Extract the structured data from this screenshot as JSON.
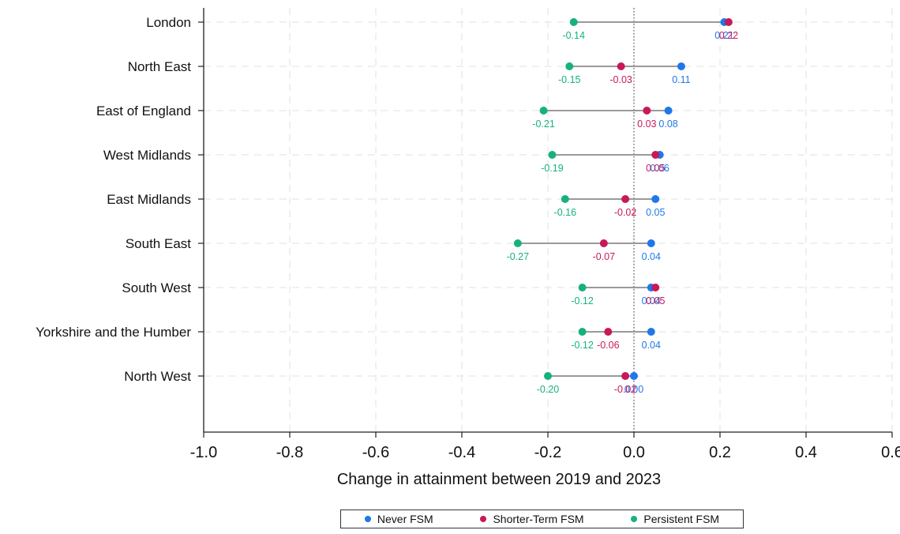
{
  "chart_data": {
    "type": "dumbbell",
    "xlabel": "Change in attainment between 2019 and 2023",
    "xlim": [
      -1.0,
      0.6
    ],
    "xticks": [
      -1.0,
      -0.8,
      -0.6,
      -0.4,
      -0.2,
      0.0,
      0.2,
      0.4,
      0.6
    ],
    "xtick_labels": [
      "-1.0",
      "-0.8",
      "-0.6",
      "-0.4",
      "-0.2",
      "0.0",
      "0.2",
      "0.4",
      "0.6"
    ],
    "reference_line": 0.0,
    "grid": true,
    "legend_position": "bottom",
    "categories": [
      "London",
      "North East",
      "East of England",
      "West Midlands",
      "East Midlands",
      "South East",
      "South West",
      "Yorkshire and the Humber",
      "North West"
    ],
    "series": [
      {
        "name": "Never FSM",
        "color": "#1f78e8",
        "values": [
          0.21,
          0.11,
          0.08,
          0.06,
          0.05,
          0.04,
          0.04,
          0.04,
          0.0
        ],
        "labels": [
          "0.21",
          "0.11",
          "0.08",
          "0.06",
          "0.05",
          "0.04",
          "0.04",
          "0.04",
          "0.00"
        ]
      },
      {
        "name": "Shorter-Term FSM",
        "color": "#c8185a",
        "values": [
          0.22,
          -0.03,
          0.03,
          0.05,
          -0.02,
          -0.07,
          0.05,
          -0.06,
          -0.02
        ],
        "labels": [
          "0.22",
          "-0.03",
          "0.03",
          "0.05",
          "-0.02",
          "-0.07",
          "0.05",
          "-0.06",
          "-0.02"
        ]
      },
      {
        "name": "Persistent FSM",
        "color": "#17b27a",
        "values": [
          -0.14,
          -0.15,
          -0.21,
          -0.19,
          -0.16,
          -0.27,
          -0.12,
          -0.12,
          -0.2
        ],
        "labels": [
          "-0.14",
          "-0.15",
          "-0.21",
          "-0.19",
          "-0.16",
          "-0.27",
          "-0.12",
          "-0.12",
          "-0.20"
        ]
      }
    ]
  }
}
